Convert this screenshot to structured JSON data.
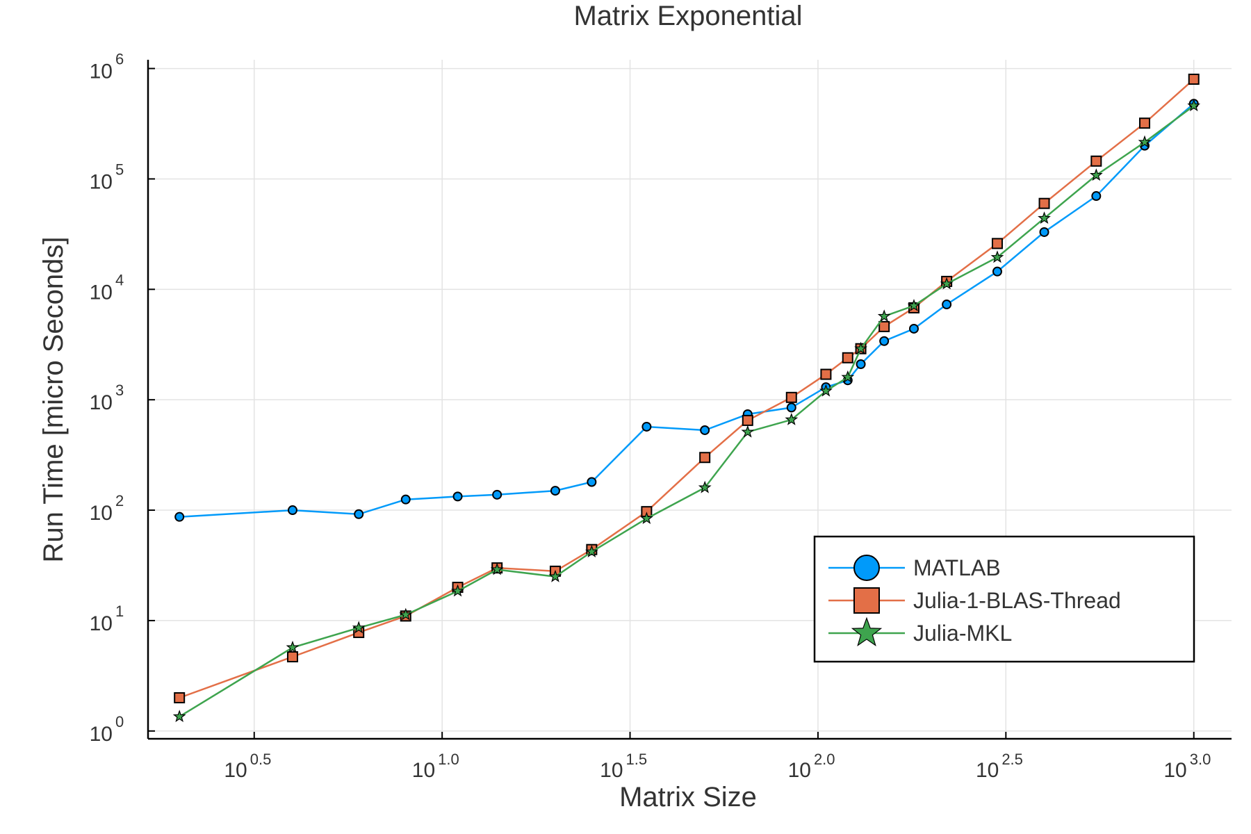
{
  "chart_data": {
    "type": "line",
    "title": "Matrix Exponential",
    "xlabel": "Matrix Size",
    "ylabel": "Run Time  [micro Seconds]",
    "x_scale": "log10",
    "y_scale": "log10",
    "xlim": [
      1.65,
      1260
    ],
    "ylim": [
      0.85,
      1200000
    ],
    "grid": true,
    "legend_position": "bottom-right",
    "x_ticks": [
      {
        "value": 3.162,
        "base": "10",
        "exp": "0.5"
      },
      {
        "value": 10,
        "base": "10",
        "exp": "1.0"
      },
      {
        "value": 31.62,
        "base": "10",
        "exp": "1.5"
      },
      {
        "value": 100,
        "base": "10",
        "exp": "2.0"
      },
      {
        "value": 316.2,
        "base": "10",
        "exp": "2.5"
      },
      {
        "value": 1000,
        "base": "10",
        "exp": "3.0"
      }
    ],
    "y_ticks": [
      {
        "value": 1,
        "base": "10",
        "exp": "0"
      },
      {
        "value": 10,
        "base": "10",
        "exp": "1"
      },
      {
        "value": 100,
        "base": "10",
        "exp": "2"
      },
      {
        "value": 1000,
        "base": "10",
        "exp": "3"
      },
      {
        "value": 10000,
        "base": "10",
        "exp": "4"
      },
      {
        "value": 100000,
        "base": "10",
        "exp": "5"
      },
      {
        "value": 1000000,
        "base": "10",
        "exp": "6"
      }
    ],
    "x": [
      2,
      4,
      6,
      8,
      11,
      14,
      20,
      25,
      35,
      50,
      65,
      85,
      105,
      120,
      130,
      150,
      180,
      220,
      300,
      400,
      550,
      740,
      1000
    ],
    "series": [
      {
        "name": "MATLAB",
        "color": "#009AFA",
        "marker": "circle",
        "values": [
          87,
          100,
          92,
          125,
          133,
          138,
          150,
          180,
          570,
          530,
          740,
          850,
          1300,
          1500,
          2100,
          3400,
          4400,
          7300,
          14500,
          33000,
          70000,
          200000,
          480000
        ]
      },
      {
        "name": "Julia-1-BLAS-Thread",
        "color": "#E36F47",
        "marker": "square",
        "values": [
          2.0,
          4.7,
          7.8,
          11.0,
          20.0,
          30.0,
          28.0,
          44.0,
          97.0,
          300,
          650,
          1050,
          1700,
          2400,
          2900,
          4600,
          6800,
          11800,
          26000,
          60000,
          145000,
          320000,
          800000
        ]
      },
      {
        "name": "Julia-MKL",
        "color": "#3EA44E",
        "marker": "star",
        "values": [
          1.35,
          5.7,
          8.6,
          11.3,
          18.5,
          29.0,
          25.0,
          42.0,
          84.0,
          160,
          510,
          660,
          1200,
          1600,
          2900,
          5700,
          7100,
          11200,
          19500,
          44000,
          108000,
          215000,
          460000
        ]
      }
    ]
  }
}
